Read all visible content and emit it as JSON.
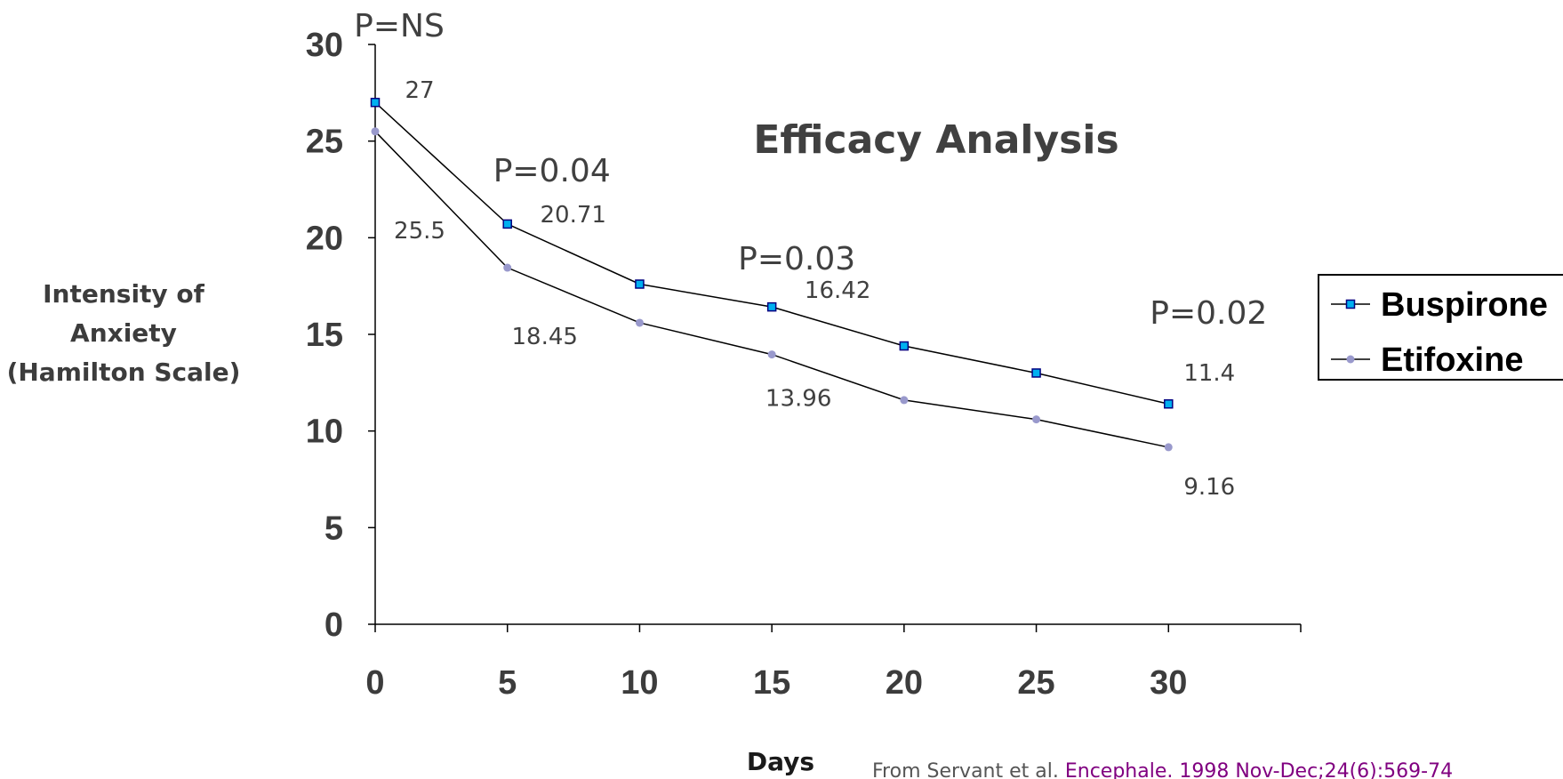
{
  "chart_data": {
    "type": "line",
    "title": "Efficacy Analysis",
    "xlabel": "Days",
    "ylabel": [
      "Intensity of",
      "Anxiety",
      "(Hamilton Scale)"
    ],
    "x": [
      0,
      5,
      10,
      15,
      20,
      25,
      30
    ],
    "xticks": [
      "0",
      "5",
      "10",
      "15",
      "20",
      "25",
      "30"
    ],
    "yticks": [
      "0",
      "5",
      "10",
      "15",
      "20",
      "25",
      "30"
    ],
    "xlim": [
      0,
      35
    ],
    "ylim": [
      0,
      30
    ],
    "grid": false,
    "legend_position": "right",
    "series": [
      {
        "name": "Buspirone",
        "color": "#00b0f0",
        "marker": "square",
        "values": [
          27,
          20.71,
          17.6,
          16.42,
          14.4,
          13.0,
          11.4
        ]
      },
      {
        "name": "Etifoxine",
        "color": "#9999cc",
        "marker": "circle",
        "values": [
          25.5,
          18.45,
          15.6,
          13.96,
          11.6,
          10.6,
          9.16
        ]
      }
    ],
    "data_labels": [
      {
        "series": 0,
        "index": 0,
        "text": "27"
      },
      {
        "series": 0,
        "index": 1,
        "text": "20.71"
      },
      {
        "series": 0,
        "index": 3,
        "text": "16.42"
      },
      {
        "series": 0,
        "index": 6,
        "text": "11.4"
      },
      {
        "series": 1,
        "index": 0,
        "text": "25.5"
      },
      {
        "series": 1,
        "index": 1,
        "text": "18.45"
      },
      {
        "series": 1,
        "index": 3,
        "text": "13.96"
      },
      {
        "series": 1,
        "index": 6,
        "text": "9.16"
      }
    ],
    "annotations": [
      {
        "at_x": 0,
        "text": "P=NS"
      },
      {
        "at_x": 5,
        "text": "P=0.04"
      },
      {
        "at_x": 15,
        "text": "P=0.03"
      },
      {
        "at_x": 30,
        "text": "P=0.02"
      }
    ]
  },
  "citation": {
    "prefix": "From Servant et al. ",
    "link": "Encephale. 1998 Nov-Dec;24(6):569-74",
    "link_color": "#800080"
  }
}
